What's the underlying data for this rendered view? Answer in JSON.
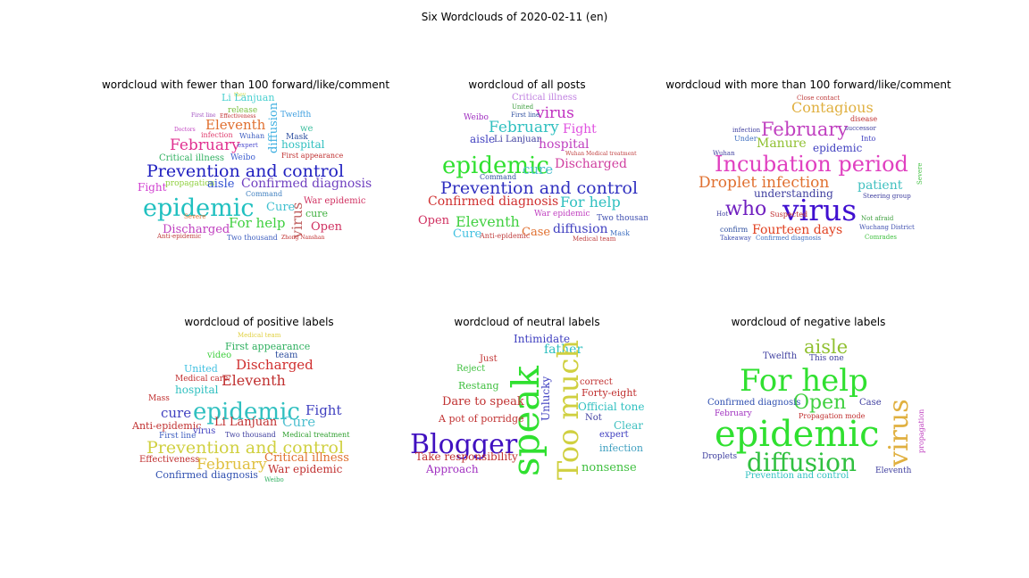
{
  "figure_title": "Six Wordclouds of 2020-02-11 (en)",
  "panels": [
    {
      "title": "wordcloud with fewer than 100 forward/like/comment",
      "words": [
        {
          "t": "they",
          "s": 6,
          "c": "#c9d640"
        },
        {
          "t": "Li Lanjuan",
          "s": 11,
          "c": "#4ad0d0"
        },
        {
          "t": "release",
          "s": 9,
          "c": "#7ac040"
        },
        {
          "t": "First line",
          "s": 6,
          "c": "#a050c0"
        },
        {
          "t": "Effectiveness",
          "s": 6,
          "c": "#c03030"
        },
        {
          "t": "Twelfth",
          "s": 9,
          "c": "#40a0e0"
        },
        {
          "t": "Eleventh",
          "s": 15,
          "c": "#e07030"
        },
        {
          "t": "infection",
          "s": 8,
          "c": "#e04070"
        },
        {
          "t": "Doctors",
          "s": 6,
          "c": "#c040c0"
        },
        {
          "t": "Wuhan",
          "s": 8,
          "c": "#4060c0"
        },
        {
          "t": "diffusion",
          "s": 13,
          "c": "#40b0e0"
        },
        {
          "t": "Mask",
          "s": 9,
          "c": "#3050a0"
        },
        {
          "t": "we",
          "s": 10,
          "c": "#40c0a0"
        },
        {
          "t": "February",
          "s": 17,
          "c": "#e03090"
        },
        {
          "t": "expert",
          "s": 7,
          "c": "#5050d0"
        },
        {
          "t": "hospital",
          "s": 12,
          "c": "#30c0c0"
        },
        {
          "t": "Critical illness",
          "s": 10,
          "c": "#30b060"
        },
        {
          "t": "Weibo",
          "s": 9,
          "c": "#4060d0"
        },
        {
          "t": "First appearance",
          "s": 8,
          "c": "#c03030"
        },
        {
          "t": "Prevention and control",
          "s": 19,
          "c": "#2020c0"
        },
        {
          "t": "propagation",
          "s": 9,
          "c": "#90d040"
        },
        {
          "t": "aisle",
          "s": 13,
          "c": "#3050d0"
        },
        {
          "t": "Confirmed diagnosis",
          "s": 14,
          "c": "#7040c0"
        },
        {
          "t": "Fight",
          "s": 12,
          "c": "#d040d0"
        },
        {
          "t": "Command",
          "s": 8,
          "c": "#4080c0"
        },
        {
          "t": "epidemic",
          "s": 27,
          "c": "#20c0c0"
        },
        {
          "t": "Cure",
          "s": 13,
          "c": "#40c0d0"
        },
        {
          "t": "virus",
          "s": 16,
          "c": "#c06060"
        },
        {
          "t": "War epidemic",
          "s": 10,
          "c": "#d03060"
        },
        {
          "t": "cure",
          "s": 11,
          "c": "#40b040"
        },
        {
          "t": "For help",
          "s": 15,
          "c": "#40d040"
        },
        {
          "t": "Severe",
          "s": 7,
          "c": "#e07030"
        },
        {
          "t": "Discharged",
          "s": 13,
          "c": "#c040c0"
        },
        {
          "t": "Open",
          "s": 13,
          "c": "#d03060"
        },
        {
          "t": "Two thousand",
          "s": 8,
          "c": "#4060c0"
        },
        {
          "t": "Anti-epidemic",
          "s": 7,
          "c": "#c04040"
        },
        {
          "t": "Zhong Nanshan",
          "s": 6,
          "c": "#c03030"
        }
      ]
    },
    {
      "title": "wordcloud of all posts",
      "words": [
        {
          "t": "Critical illness",
          "s": 10,
          "c": "#c080e0"
        },
        {
          "t": "United",
          "s": 7,
          "c": "#40a040"
        },
        {
          "t": "virus",
          "s": 17,
          "c": "#c030c0"
        },
        {
          "t": "Weibo",
          "s": 9,
          "c": "#a030c0"
        },
        {
          "t": "First line",
          "s": 7,
          "c": "#3050a0"
        },
        {
          "t": "February",
          "s": 17,
          "c": "#30c0c0"
        },
        {
          "t": "Fight",
          "s": 14,
          "c": "#e050e0"
        },
        {
          "t": "aisle",
          "s": 12,
          "c": "#4040c0"
        },
        {
          "t": "Li Lanjuan",
          "s": 10,
          "c": "#4040a0"
        },
        {
          "t": "hospital",
          "s": 14,
          "c": "#c040c0"
        },
        {
          "t": "Wuhan Medical treatment",
          "s": 6,
          "c": "#c04040"
        },
        {
          "t": "epidemic",
          "s": 26,
          "c": "#30e030"
        },
        {
          "t": "cure",
          "s": 15,
          "c": "#50c0d0"
        },
        {
          "t": "Discharged",
          "s": 14,
          "c": "#d040a0"
        },
        {
          "t": "Prevention and control",
          "s": 19,
          "c": "#3030c0"
        },
        {
          "t": "Command",
          "s": 8,
          "c": "#3050a0"
        },
        {
          "t": "Confirmed diagnosis",
          "s": 14,
          "c": "#d03030"
        },
        {
          "t": "For help",
          "s": 16,
          "c": "#30c0c0"
        },
        {
          "t": "Eleventh",
          "s": 16,
          "c": "#40d040"
        },
        {
          "t": "Open",
          "s": 13,
          "c": "#d03060"
        },
        {
          "t": "War epidemic",
          "s": 9,
          "c": "#c040c0"
        },
        {
          "t": "Two thousand",
          "s": 9,
          "c": "#4050b0"
        },
        {
          "t": "Cure",
          "s": 13,
          "c": "#40c0e0"
        },
        {
          "t": "Case",
          "s": 13,
          "c": "#e07030"
        },
        {
          "t": "diffusion",
          "s": 14,
          "c": "#4040c0"
        },
        {
          "t": "Mask",
          "s": 8,
          "c": "#4070c0"
        },
        {
          "t": "Anti-epidemic",
          "s": 8,
          "c": "#c04040"
        },
        {
          "t": "Medical team",
          "s": 7,
          "c": "#c04040"
        }
      ]
    },
    {
      "title": "wordcloud with more than 100 forward/like/comment",
      "words": [
        {
          "t": "Close contact",
          "s": 7,
          "c": "#c04040"
        },
        {
          "t": "Contagious",
          "s": 16,
          "c": "#e0b040"
        },
        {
          "t": "disease",
          "s": 8,
          "c": "#c03030"
        },
        {
          "t": "infection",
          "s": 7,
          "c": "#4040a0"
        },
        {
          "t": "February",
          "s": 21,
          "c": "#c040c0"
        },
        {
          "t": "successor",
          "s": 7,
          "c": "#4040a0"
        },
        {
          "t": "Manure",
          "s": 14,
          "c": "#90c030"
        },
        {
          "t": "epidemic",
          "s": 12,
          "c": "#4040c0"
        },
        {
          "t": "Under",
          "s": 8,
          "c": "#4070c0"
        },
        {
          "t": "Into",
          "s": 8,
          "c": "#4040c0"
        },
        {
          "t": "Incubation period",
          "s": 24,
          "c": "#e040c0"
        },
        {
          "t": "Droplet infection",
          "s": 17,
          "c": "#e07030"
        },
        {
          "t": "patient",
          "s": 14,
          "c": "#40c0c0"
        },
        {
          "t": "understanding",
          "s": 12,
          "c": "#4040a0"
        },
        {
          "t": "who",
          "s": 22,
          "c": "#7020c0"
        },
        {
          "t": "virus",
          "s": 33,
          "c": "#4010d0"
        },
        {
          "t": "Suspected",
          "s": 8,
          "c": "#c03030"
        },
        {
          "t": "Fourteen days",
          "s": 14,
          "c": "#e04020"
        },
        {
          "t": "Steering group",
          "s": 7,
          "c": "#4040a0"
        },
        {
          "t": "Wuchang District",
          "s": 7,
          "c": "#4050b0"
        },
        {
          "t": "confirm",
          "s": 8,
          "c": "#3050a0"
        },
        {
          "t": "Takeaway",
          "s": 7,
          "c": "#4050b0"
        },
        {
          "t": "Confirmed diagnosis",
          "s": 7,
          "c": "#4070c0"
        },
        {
          "t": "Not afraid",
          "s": 7,
          "c": "#40a040"
        },
        {
          "t": "Comrades",
          "s": 7,
          "c": "#40c040"
        },
        {
          "t": "Hot",
          "s": 7,
          "c": "#4040a0"
        },
        {
          "t": "Wuhan",
          "s": 7,
          "c": "#4040a0"
        },
        {
          "t": "Severe",
          "s": 7,
          "c": "#40c040"
        }
      ]
    },
    {
      "title": "wordcloud of positive labels",
      "words": [
        {
          "t": "Medical team",
          "s": 7,
          "c": "#e0d040"
        },
        {
          "t": "First appearance",
          "s": 11,
          "c": "#30b060"
        },
        {
          "t": "video",
          "s": 10,
          "c": "#40d040"
        },
        {
          "t": "team",
          "s": 10,
          "c": "#3050a0"
        },
        {
          "t": "Discharged",
          "s": 15,
          "c": "#d03030"
        },
        {
          "t": "United",
          "s": 11,
          "c": "#40c0e0"
        },
        {
          "t": "Medical care",
          "s": 9,
          "c": "#c03030"
        },
        {
          "t": "Eleventh",
          "s": 16,
          "c": "#c03030"
        },
        {
          "t": "hospital",
          "s": 12,
          "c": "#30c0c0"
        },
        {
          "t": "Mass",
          "s": 9,
          "c": "#c03030"
        },
        {
          "t": "epidemic",
          "s": 26,
          "c": "#30c0c0"
        },
        {
          "t": "cure",
          "s": 15,
          "c": "#4040c0"
        },
        {
          "t": "Li Lanjuan",
          "s": 13,
          "c": "#c03030"
        },
        {
          "t": "Cure",
          "s": 15,
          "c": "#50c0d0"
        },
        {
          "t": "Fight",
          "s": 15,
          "c": "#4040c0"
        },
        {
          "t": "Anti-epidemic",
          "s": 11,
          "c": "#c03030"
        },
        {
          "t": "virus",
          "s": 10,
          "c": "#4040c0"
        },
        {
          "t": "First line",
          "s": 9,
          "c": "#4060c0"
        },
        {
          "t": "Two thousand",
          "s": 8,
          "c": "#4040a0"
        },
        {
          "t": "Medical treatment",
          "s": 8,
          "c": "#30a030"
        },
        {
          "t": "Prevention and control",
          "s": 19,
          "c": "#d0d040"
        },
        {
          "t": "Effectiveness",
          "s": 10,
          "c": "#c03030"
        },
        {
          "t": "February",
          "s": 17,
          "c": "#e0c040"
        },
        {
          "t": "Critical illness",
          "s": 13,
          "c": "#e07030"
        },
        {
          "t": "War epidemic",
          "s": 12,
          "c": "#c03030"
        },
        {
          "t": "Confirmed diagnosis",
          "s": 11,
          "c": "#3050b0"
        },
        {
          "t": "Weibo",
          "s": 7,
          "c": "#30b060"
        }
      ]
    },
    {
      "title": "wordcloud of neutral labels",
      "words": [
        {
          "t": "Intimidate",
          "s": 12,
          "c": "#4040c0"
        },
        {
          "t": "father",
          "s": 14,
          "c": "#30c0c0"
        },
        {
          "t": "Just",
          "s": 10,
          "c": "#c03030"
        },
        {
          "t": "Reject",
          "s": 10,
          "c": "#40c040"
        },
        {
          "t": "speak",
          "s": 42,
          "c": "#30e030"
        },
        {
          "t": "Too much",
          "s": 32,
          "c": "#d0d040"
        },
        {
          "t": "Unlucky",
          "s": 12,
          "c": "#4040c0"
        },
        {
          "t": "correct",
          "s": 10,
          "c": "#c03030"
        },
        {
          "t": "Restang",
          "s": 11,
          "c": "#40c040"
        },
        {
          "t": "Forty-eight",
          "s": 11,
          "c": "#c03030"
        },
        {
          "t": "Dare to speak",
          "s": 13,
          "c": "#c03030"
        },
        {
          "t": "Official tone",
          "s": 12,
          "c": "#30c0c0"
        },
        {
          "t": "A pot of porridge",
          "s": 11,
          "c": "#c03030"
        },
        {
          "t": "Not",
          "s": 10,
          "c": "#4040a0"
        },
        {
          "t": "Clear",
          "s": 12,
          "c": "#40c0c0"
        },
        {
          "t": "Blogger",
          "s": 30,
          "c": "#4010c0"
        },
        {
          "t": "expert",
          "s": 10,
          "c": "#4040c0"
        },
        {
          "t": "infection",
          "s": 11,
          "c": "#40a0c0"
        },
        {
          "t": "Take responsibility",
          "s": 12,
          "c": "#c03030"
        },
        {
          "t": "nonsense",
          "s": 13,
          "c": "#40c040"
        },
        {
          "t": "Approach",
          "s": 12,
          "c": "#a030c0"
        }
      ]
    },
    {
      "title": "wordcloud of negative labels",
      "words": [
        {
          "t": "aisle",
          "s": 21,
          "c": "#90c030"
        },
        {
          "t": "Twelfth",
          "s": 10,
          "c": "#4040a0"
        },
        {
          "t": "This one",
          "s": 9,
          "c": "#4040a0"
        },
        {
          "t": "For help",
          "s": 34,
          "c": "#30e030"
        },
        {
          "t": "Open",
          "s": 22,
          "c": "#40d040"
        },
        {
          "t": "Confirmed diagnosis",
          "s": 10,
          "c": "#3050b0"
        },
        {
          "t": "Case",
          "s": 10,
          "c": "#4040a0"
        },
        {
          "t": "February",
          "s": 9,
          "c": "#a030c0"
        },
        {
          "t": "Propagation mode",
          "s": 8,
          "c": "#c03030"
        },
        {
          "t": "epidemic",
          "s": 40,
          "c": "#30e030"
        },
        {
          "t": "virus",
          "s": 30,
          "c": "#e0b040"
        },
        {
          "t": "Droplets",
          "s": 9,
          "c": "#4040a0"
        },
        {
          "t": "diffusion",
          "s": 28,
          "c": "#30c040"
        },
        {
          "t": "Prevention and control",
          "s": 10,
          "c": "#30c0c0"
        },
        {
          "t": "Eleventh",
          "s": 9,
          "c": "#4040a0"
        },
        {
          "t": "propagation",
          "s": 8,
          "c": "#c040c0"
        }
      ]
    }
  ]
}
